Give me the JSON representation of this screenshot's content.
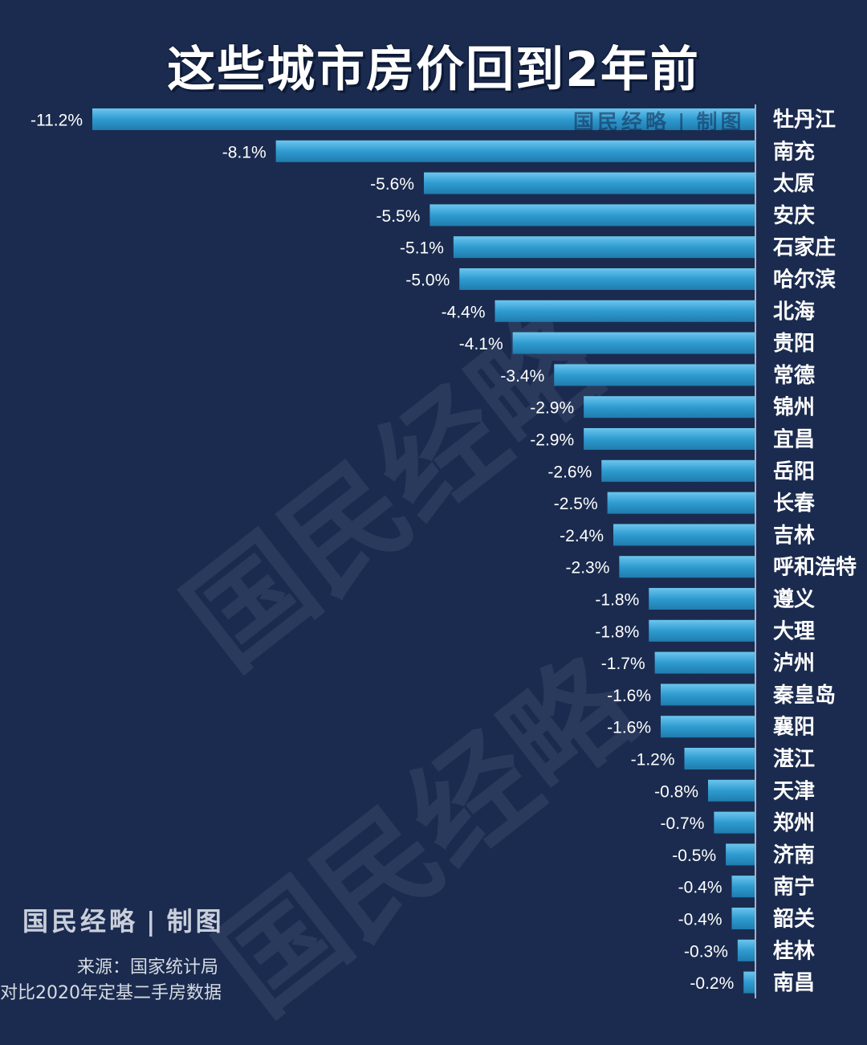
{
  "title": "这些城市房价回到2年前",
  "watermark_text": "国民经略",
  "brand": {
    "name": "国民经略",
    "separator": "|",
    "tag": "制图"
  },
  "source_text": "来源：国家统计局",
  "note_text": "对比2020年定基二手房数据",
  "colors": {
    "background": "#1b2b4f",
    "bar": "#2f9bd0",
    "bar_light": "#5cbbe6",
    "text": "#ffffff"
  },
  "chart_data": {
    "type": "bar",
    "orientation": "horizontal",
    "categories": [
      "牡丹江",
      "南充",
      "太原",
      "安庆",
      "石家庄",
      "哈尔滨",
      "北海",
      "贵阳",
      "常德",
      "锦州",
      "宜昌",
      "岳阳",
      "长春",
      "吉林",
      "呼和浩特",
      "遵义",
      "大理",
      "泸州",
      "秦皇岛",
      "襄阳",
      "湛江",
      "天津",
      "郑州",
      "济南",
      "南宁",
      "韶关",
      "桂林",
      "南昌"
    ],
    "values": [
      -11.2,
      -8.1,
      -5.6,
      -5.5,
      -5.1,
      -5.0,
      -4.4,
      -4.1,
      -3.4,
      -2.9,
      -2.9,
      -2.6,
      -2.5,
      -2.4,
      -2.3,
      -1.8,
      -1.8,
      -1.7,
      -1.6,
      -1.6,
      -1.2,
      -0.8,
      -0.7,
      -0.5,
      -0.4,
      -0.4,
      -0.3,
      -0.2
    ],
    "value_labels": [
      "-11.2%",
      "-8.1%",
      "-5.6%",
      "-5.5%",
      "-5.1%",
      "-5.0%",
      "-4.4%",
      "-4.1%",
      "-3.4%",
      "-2.9%",
      "-2.9%",
      "-2.6%",
      "-2.5%",
      "-2.4%",
      "-2.3%",
      "-1.8%",
      "-1.8%",
      "-1.7%",
      "-1.6%",
      "-1.6%",
      "-1.2%",
      "-0.8%",
      "-0.7%",
      "-0.5%",
      "-0.4%",
      "-0.4%",
      "-0.3%",
      "-0.2%"
    ],
    "unit": "%",
    "xlim": [
      -11.2,
      0
    ],
    "grid": false,
    "legend": "none"
  }
}
